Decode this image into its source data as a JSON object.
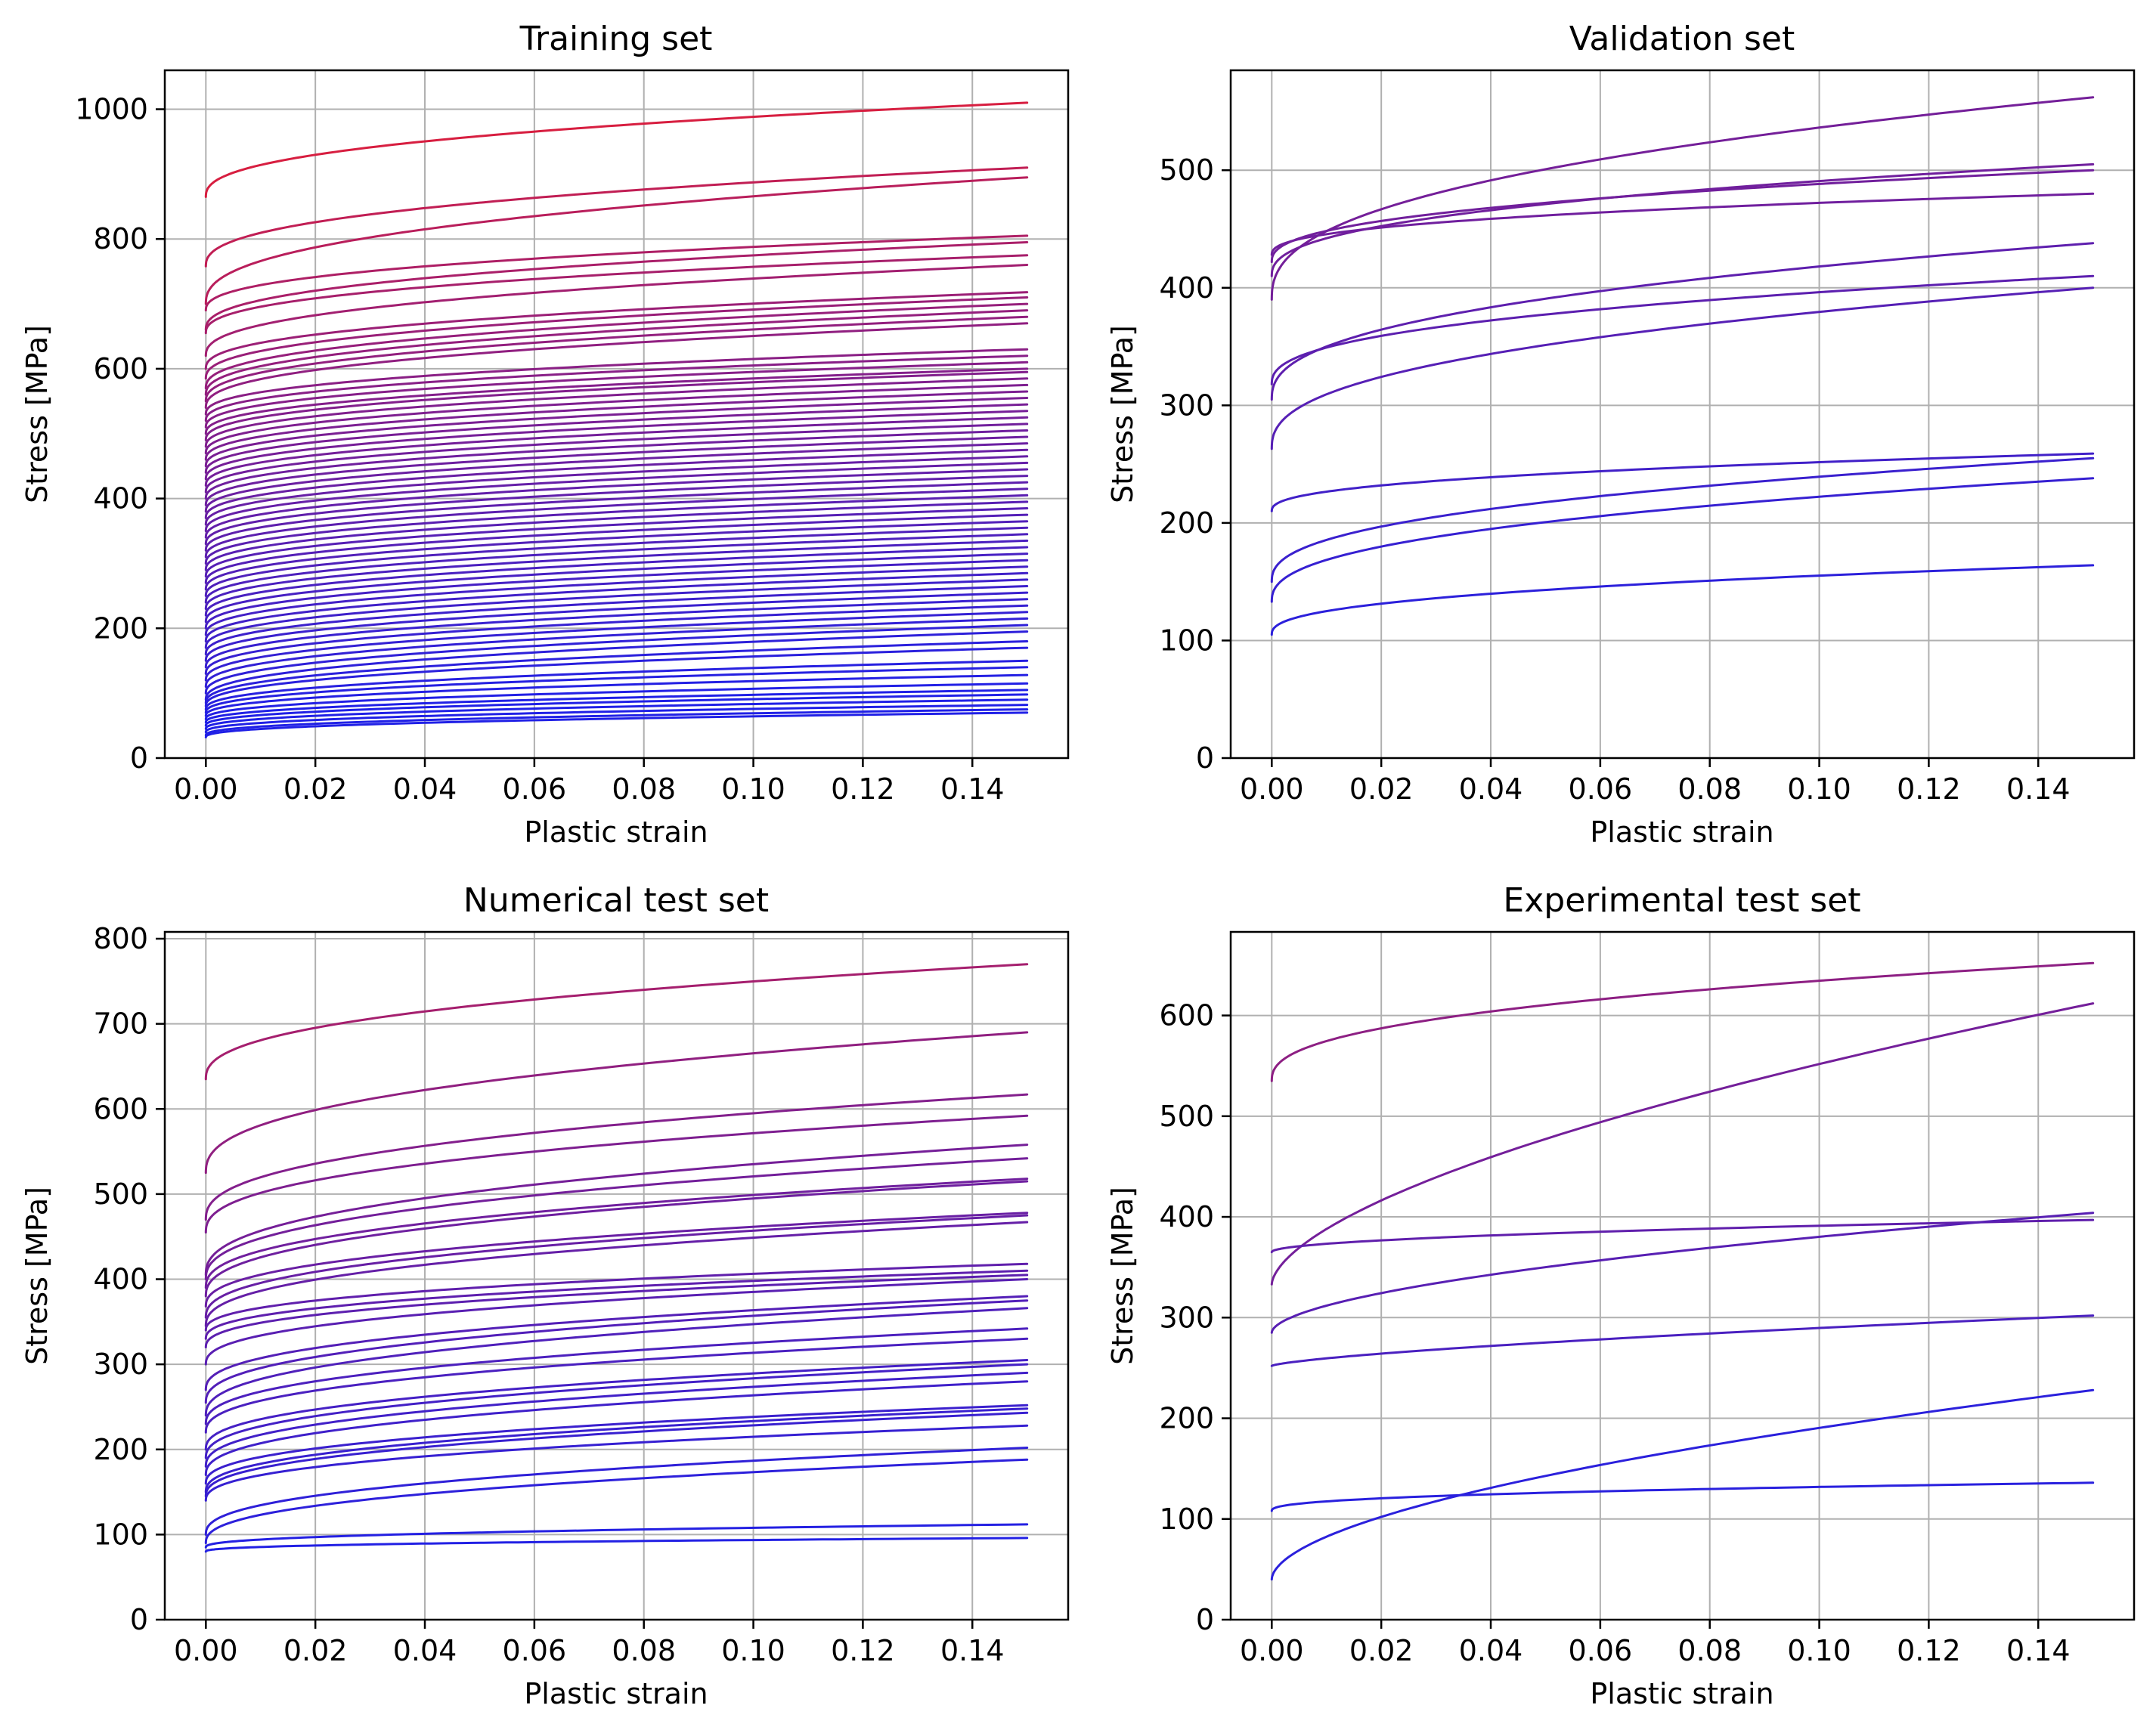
{
  "chart_data": [
    {
      "type": "line",
      "title": "Training set",
      "xlabel": "Plastic strain",
      "ylabel": "Stress [MPa]",
      "xlim": [
        -0.0075,
        0.1575
      ],
      "ylim": [
        0,
        1060
      ],
      "xticks": [
        0.0,
        0.02,
        0.04,
        0.06,
        0.08,
        0.1,
        0.12,
        0.14
      ],
      "xtick_labels": [
        "0.00",
        "0.02",
        "0.04",
        "0.06",
        "0.08",
        "0.10",
        "0.12",
        "0.14"
      ],
      "yticks": [
        0,
        200,
        400,
        600,
        800,
        1000
      ],
      "ytick_labels": [
        "0",
        "200",
        "400",
        "600",
        "800",
        "1000"
      ],
      "grid": true,
      "x_range": [
        0,
        0.15
      ],
      "color_map": {
        "low": "#2020e6",
        "high": "#e61e32",
        "stress_low": 80,
        "stress_high": 1010
      },
      "curve_model": "y = y0 + (y_end - y0) * (x / 0.15)^0.4",
      "series": [
        {
          "y0": 865,
          "y_end": 1010
        },
        {
          "y0": 758,
          "y_end": 910
        },
        {
          "y0": 700,
          "y_end": 895
        },
        {
          "y0": 690,
          "y_end": 805
        },
        {
          "y0": 660,
          "y_end": 795
        },
        {
          "y0": 655,
          "y_end": 775
        },
        {
          "y0": 620,
          "y_end": 760
        },
        {
          "y0": 600,
          "y_end": 718
        },
        {
          "y0": 585,
          "y_end": 710
        },
        {
          "y0": 570,
          "y_end": 700
        },
        {
          "y0": 560,
          "y_end": 690
        },
        {
          "y0": 550,
          "y_end": 680
        },
        {
          "y0": 540,
          "y_end": 670
        },
        {
          "y0": 530,
          "y_end": 630
        },
        {
          "y0": 520,
          "y_end": 620
        },
        {
          "y0": 510,
          "y_end": 610
        },
        {
          "y0": 500,
          "y_end": 600
        },
        {
          "y0": 490,
          "y_end": 595
        },
        {
          "y0": 480,
          "y_end": 585
        },
        {
          "y0": 470,
          "y_end": 575
        },
        {
          "y0": 460,
          "y_end": 565
        },
        {
          "y0": 450,
          "y_end": 555
        },
        {
          "y0": 440,
          "y_end": 545
        },
        {
          "y0": 430,
          "y_end": 535
        },
        {
          "y0": 420,
          "y_end": 525
        },
        {
          "y0": 410,
          "y_end": 515
        },
        {
          "y0": 400,
          "y_end": 505
        },
        {
          "y0": 390,
          "y_end": 495
        },
        {
          "y0": 380,
          "y_end": 485
        },
        {
          "y0": 370,
          "y_end": 475
        },
        {
          "y0": 360,
          "y_end": 465
        },
        {
          "y0": 350,
          "y_end": 455
        },
        {
          "y0": 340,
          "y_end": 445
        },
        {
          "y0": 330,
          "y_end": 435
        },
        {
          "y0": 320,
          "y_end": 425
        },
        {
          "y0": 310,
          "y_end": 415
        },
        {
          "y0": 300,
          "y_end": 405
        },
        {
          "y0": 290,
          "y_end": 395
        },
        {
          "y0": 280,
          "y_end": 385
        },
        {
          "y0": 270,
          "y_end": 375
        },
        {
          "y0": 260,
          "y_end": 365
        },
        {
          "y0": 250,
          "y_end": 355
        },
        {
          "y0": 240,
          "y_end": 345
        },
        {
          "y0": 230,
          "y_end": 335
        },
        {
          "y0": 220,
          "y_end": 325
        },
        {
          "y0": 210,
          "y_end": 315
        },
        {
          "y0": 200,
          "y_end": 305
        },
        {
          "y0": 190,
          "y_end": 295
        },
        {
          "y0": 180,
          "y_end": 285
        },
        {
          "y0": 170,
          "y_end": 275
        },
        {
          "y0": 160,
          "y_end": 265
        },
        {
          "y0": 150,
          "y_end": 255
        },
        {
          "y0": 140,
          "y_end": 245
        },
        {
          "y0": 130,
          "y_end": 235
        },
        {
          "y0": 120,
          "y_end": 225
        },
        {
          "y0": 110,
          "y_end": 215
        },
        {
          "y0": 100,
          "y_end": 205
        },
        {
          "y0": 90,
          "y_end": 195
        },
        {
          "y0": 85,
          "y_end": 180
        },
        {
          "y0": 80,
          "y_end": 170
        },
        {
          "y0": 75,
          "y_end": 150
        },
        {
          "y0": 70,
          "y_end": 140
        },
        {
          "y0": 65,
          "y_end": 128
        },
        {
          "y0": 60,
          "y_end": 115
        },
        {
          "y0": 55,
          "y_end": 105
        },
        {
          "y0": 50,
          "y_end": 98
        },
        {
          "y0": 45,
          "y_end": 90
        },
        {
          "y0": 40,
          "y_end": 82
        },
        {
          "y0": 35,
          "y_end": 75
        },
        {
          "y0": 32,
          "y_end": 70
        }
      ]
    },
    {
      "type": "line",
      "title": "Validation set",
      "xlabel": "Plastic strain",
      "ylabel": "Stress [MPa]",
      "xlim": [
        -0.0075,
        0.1575
      ],
      "ylim": [
        0,
        585
      ],
      "xticks": [
        0.0,
        0.02,
        0.04,
        0.06,
        0.08,
        0.1,
        0.12,
        0.14
      ],
      "xtick_labels": [
        "0.00",
        "0.02",
        "0.04",
        "0.06",
        "0.08",
        "0.10",
        "0.12",
        "0.14"
      ],
      "yticks": [
        0,
        100,
        200,
        300,
        400,
        500
      ],
      "ytick_labels": [
        "0",
        "100",
        "200",
        "300",
        "400",
        "500"
      ],
      "grid": true,
      "x_range": [
        0,
        0.15
      ],
      "color_map": {
        "low": "#2020e6",
        "high": "#e61e32",
        "stress_low": 80,
        "stress_high": 1010
      },
      "curve_model": "y = y0 + (y_end - y0) * (x / 0.15)^0.4",
      "series": [
        {
          "y0": 390,
          "y_end": 562
        },
        {
          "y0": 410,
          "y_end": 505
        },
        {
          "y0": 422,
          "y_end": 500
        },
        {
          "y0": 428,
          "y_end": 480
        },
        {
          "y0": 305,
          "y_end": 438
        },
        {
          "y0": 318,
          "y_end": 410
        },
        {
          "y0": 263,
          "y_end": 400
        },
        {
          "y0": 210,
          "y_end": 259
        },
        {
          "y0": 150,
          "y_end": 255
        },
        {
          "y0": 133,
          "y_end": 238
        },
        {
          "y0": 105,
          "y_end": 164
        }
      ]
    },
    {
      "type": "line",
      "title": "Numerical test set",
      "xlabel": "Plastic strain",
      "ylabel": "Stress [MPa]",
      "xlim": [
        -0.0075,
        0.1575
      ],
      "ylim": [
        0,
        808
      ],
      "xticks": [
        0.0,
        0.02,
        0.04,
        0.06,
        0.08,
        0.1,
        0.12,
        0.14
      ],
      "xtick_labels": [
        "0.00",
        "0.02",
        "0.04",
        "0.06",
        "0.08",
        "0.10",
        "0.12",
        "0.14"
      ],
      "yticks": [
        0,
        100,
        200,
        300,
        400,
        500,
        600,
        700,
        800
      ],
      "ytick_labels": [
        "0",
        "100",
        "200",
        "300",
        "400",
        "500",
        "600",
        "700",
        "800"
      ],
      "grid": true,
      "x_range": [
        0,
        0.15
      ],
      "color_map": {
        "low": "#2020e6",
        "high": "#e61e32",
        "stress_low": 80,
        "stress_high": 1010
      },
      "curve_model": "y = y0 + (y_end - y0) * (x / 0.15)^0.4",
      "series": [
        {
          "y0": 635,
          "y_end": 770
        },
        {
          "y0": 525,
          "y_end": 690
        },
        {
          "y0": 470,
          "y_end": 617
        },
        {
          "y0": 455,
          "y_end": 592
        },
        {
          "y0": 405,
          "y_end": 558
        },
        {
          "y0": 400,
          "y_end": 542
        },
        {
          "y0": 390,
          "y_end": 518
        },
        {
          "y0": 380,
          "y_end": 515
        },
        {
          "y0": 368,
          "y_end": 478
        },
        {
          "y0": 355,
          "y_end": 475
        },
        {
          "y0": 345,
          "y_end": 467
        },
        {
          "y0": 340,
          "y_end": 418
        },
        {
          "y0": 330,
          "y_end": 410
        },
        {
          "y0": 320,
          "y_end": 405
        },
        {
          "y0": 300,
          "y_end": 400
        },
        {
          "y0": 270,
          "y_end": 380
        },
        {
          "y0": 255,
          "y_end": 375
        },
        {
          "y0": 240,
          "y_end": 366
        },
        {
          "y0": 230,
          "y_end": 342
        },
        {
          "y0": 220,
          "y_end": 330
        },
        {
          "y0": 200,
          "y_end": 305
        },
        {
          "y0": 190,
          "y_end": 300
        },
        {
          "y0": 180,
          "y_end": 290
        },
        {
          "y0": 170,
          "y_end": 280
        },
        {
          "y0": 160,
          "y_end": 252
        },
        {
          "y0": 150,
          "y_end": 248
        },
        {
          "y0": 145,
          "y_end": 243
        },
        {
          "y0": 140,
          "y_end": 228
        },
        {
          "y0": 100,
          "y_end": 202
        },
        {
          "y0": 90,
          "y_end": 188
        },
        {
          "y0": 85,
          "y_end": 112
        },
        {
          "y0": 80,
          "y_end": 96
        }
      ]
    },
    {
      "type": "line",
      "title": "Experimental test set",
      "xlabel": "Plastic strain",
      "ylabel": "Stress [MPa]",
      "xlim": [
        -0.0075,
        0.1575
      ],
      "ylim": [
        0,
        683
      ],
      "xticks": [
        0.0,
        0.02,
        0.04,
        0.06,
        0.08,
        0.1,
        0.12,
        0.14
      ],
      "xtick_labels": [
        "0.00",
        "0.02",
        "0.04",
        "0.06",
        "0.08",
        "0.10",
        "0.12",
        "0.14"
      ],
      "yticks": [
        0,
        100,
        200,
        300,
        400,
        500,
        600
      ],
      "ytick_labels": [
        "0",
        "100",
        "200",
        "300",
        "400",
        "500",
        "600"
      ],
      "grid": true,
      "x_range": [
        0,
        0.15
      ],
      "color_map": {
        "low": "#2020e6",
        "high": "#e61e32",
        "stress_low": 80,
        "stress_high": 1010
      },
      "curve_model": "y = y0 + (y_end - y0) * (x / 0.15)^p",
      "series": [
        {
          "y0": 535,
          "y_end": 652,
          "p": 0.4
        },
        {
          "y0": 333,
          "y_end": 612,
          "p": 0.6
        },
        {
          "y0": 365,
          "y_end": 397,
          "p": 0.5
        },
        {
          "y0": 285,
          "y_end": 404,
          "p": 0.55
        },
        {
          "y0": 252,
          "y_end": 302,
          "p": 0.7
        },
        {
          "y0": 40,
          "y_end": 228,
          "p": 0.55
        },
        {
          "y0": 108,
          "y_end": 136,
          "p": 0.4
        }
      ]
    }
  ]
}
